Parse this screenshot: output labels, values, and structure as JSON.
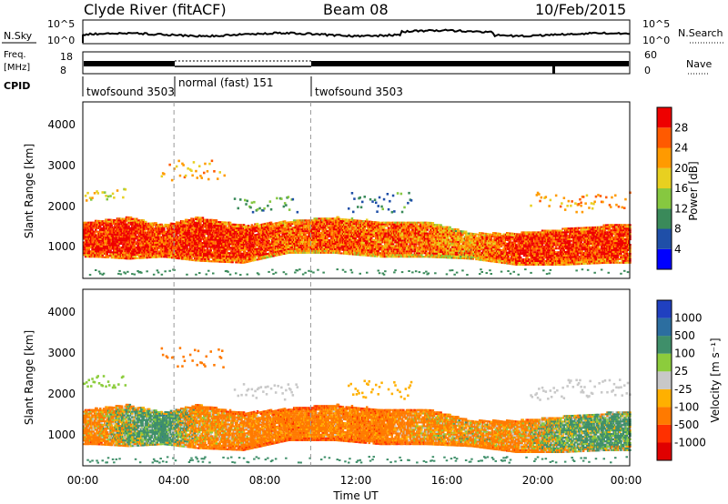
{
  "header": {
    "station": "Clyde River (fitACF)",
    "beam": "Beam 08",
    "date": "10/Feb/2015"
  },
  "strips": {
    "nsky_label": "N.Sky",
    "nsky_ticks": [
      "10^5",
      "10^0"
    ],
    "nsearch_ticks": [
      "10^5",
      "10^0"
    ],
    "nsearch_label": "N.Search",
    "freq_label_1": "Freq.",
    "freq_label_2": "[MHz]",
    "freq_ticks": [
      "18",
      "8"
    ],
    "nave_ticks": [
      "60",
      "0"
    ],
    "nave_label": "Nave",
    "cpid_label": "CPID",
    "cpid_segments": [
      {
        "label": "twofsound 3503",
        "start_h": 0,
        "end_h": 4
      },
      {
        "label": "normal (fast) 151",
        "start_h": 4,
        "end_h": 10
      },
      {
        "label": "twofsound 3503",
        "start_h": 10,
        "end_h": 24
      }
    ]
  },
  "power_panel": {
    "ylabel": "Slant Range [km]",
    "yticks": [
      "1000",
      "2000",
      "3000",
      "4000"
    ],
    "colorbar_label": "Power [dB]",
    "colorbar_ticks": [
      "4",
      "8",
      "12",
      "16",
      "20",
      "24",
      "28"
    ],
    "colorbar_colors": [
      "#0000ff",
      "#1f4fa8",
      "#3a8a5a",
      "#86c840",
      "#e8d020",
      "#ff9a00",
      "#ff5a00",
      "#ee0000"
    ]
  },
  "velocity_panel": {
    "ylabel": "Slant Range [km]",
    "yticks": [
      "1000",
      "2000",
      "3000",
      "4000"
    ],
    "colorbar_label": "Velocity [m s⁻¹]",
    "colorbar_ticks": [
      "1000",
      "500",
      "100",
      "25",
      "-25",
      "-100",
      "-500",
      "-1000"
    ],
    "colorbar_colors": [
      "#2040c0",
      "#2c6ea0",
      "#3f8f6a",
      "#8ccc3c",
      "#c8c8c8",
      "#ffb000",
      "#ff7a00",
      "#ff3000",
      "#e00000"
    ]
  },
  "time_axis": {
    "xlabel": "Time UT",
    "ticks": [
      "00:00",
      "04:00",
      "08:00",
      "12:00",
      "16:00",
      "20:00",
      "00:00"
    ]
  },
  "chart_data": {
    "type": "heatmap",
    "x_range_hours": [
      0,
      24
    ],
    "y_range_km": [
      180,
      4600
    ],
    "mode_change_hours": [
      4,
      10
    ],
    "series": [
      {
        "name": "Power [dB]",
        "value_range": [
          0,
          30
        ],
        "main_band": [
          {
            "t": 0.5,
            "low": 700,
            "high": 1600,
            "power": 27
          },
          {
            "t": 2.0,
            "low": 650,
            "high": 1700,
            "power": 28
          },
          {
            "t": 3.5,
            "low": 700,
            "high": 1500,
            "power": 26
          },
          {
            "t": 5.0,
            "low": 600,
            "high": 1700,
            "power": 28
          },
          {
            "t": 7.0,
            "low": 550,
            "high": 1500,
            "power": 27
          },
          {
            "t": 9.0,
            "low": 800,
            "high": 1600,
            "power": 24
          },
          {
            "t": 11.0,
            "low": 800,
            "high": 1700,
            "power": 25
          },
          {
            "t": 13.0,
            "low": 700,
            "high": 1600,
            "power": 24
          },
          {
            "t": 15.0,
            "low": 700,
            "high": 1600,
            "power": 23
          },
          {
            "t": 17.0,
            "low": 650,
            "high": 1300,
            "power": 21
          },
          {
            "t": 19.0,
            "low": 500,
            "high": 1300,
            "power": 27
          },
          {
            "t": 21.0,
            "low": 500,
            "high": 1400,
            "power": 27
          },
          {
            "t": 23.0,
            "low": 550,
            "high": 1500,
            "power": 27
          }
        ],
        "upper_band": [
          {
            "t": 0.5,
            "low": 2100,
            "high": 2400,
            "power": 16
          },
          {
            "t": 4.8,
            "low": 2600,
            "high": 3100,
            "power": 20
          },
          {
            "t": 8.0,
            "low": 1800,
            "high": 2200,
            "power": 10
          },
          {
            "t": 13.0,
            "low": 1800,
            "high": 2300,
            "power": 9
          },
          {
            "t": 21.0,
            "low": 1800,
            "high": 2300,
            "power": 20
          },
          {
            "t": 23.0,
            "low": 1900,
            "high": 2300,
            "power": 22
          }
        ]
      },
      {
        "name": "Velocity [m s⁻¹]",
        "value_range": [
          -1000,
          1000
        ],
        "main_band": [
          {
            "t": 0.5,
            "low": 700,
            "high": 1600,
            "velocity": -200
          },
          {
            "t": 2.0,
            "low": 650,
            "high": 1700,
            "velocity": 100
          },
          {
            "t": 3.5,
            "low": 700,
            "high": 1500,
            "velocity": 300
          },
          {
            "t": 5.0,
            "low": 600,
            "high": 1700,
            "velocity": -150
          },
          {
            "t": 7.0,
            "low": 550,
            "high": 1500,
            "velocity": -200
          },
          {
            "t": 9.0,
            "low": 800,
            "high": 1600,
            "velocity": -300
          },
          {
            "t": 11.0,
            "low": 800,
            "high": 1700,
            "velocity": -250
          },
          {
            "t": 13.0,
            "low": 700,
            "high": 1600,
            "velocity": -300
          },
          {
            "t": 15.0,
            "low": 700,
            "high": 1600,
            "velocity": -150
          },
          {
            "t": 17.0,
            "low": 650,
            "high": 1300,
            "velocity": -100
          },
          {
            "t": 19.0,
            "low": 500,
            "high": 1300,
            "velocity": -200
          },
          {
            "t": 21.0,
            "low": 500,
            "high": 1400,
            "velocity": 150
          },
          {
            "t": 23.0,
            "low": 550,
            "high": 1500,
            "velocity": 200
          }
        ]
      }
    ]
  }
}
